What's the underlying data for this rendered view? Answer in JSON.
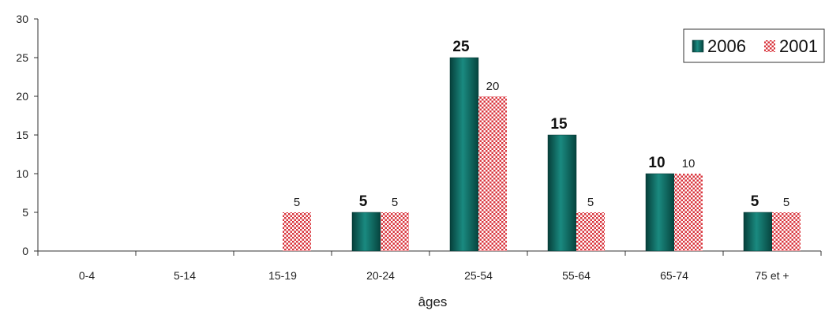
{
  "chart_data": {
    "type": "bar",
    "categories": [
      "0-4",
      "5-14",
      "15-19",
      "20-24",
      "25-54",
      "55-64",
      "65-74",
      "75 et +"
    ],
    "series": [
      {
        "name": "2006",
        "values": [
          0,
          0,
          0,
          5,
          25,
          15,
          10,
          5
        ],
        "color": "#0f6b64"
      },
      {
        "name": "2001",
        "values": [
          0,
          0,
          5,
          5,
          20,
          5,
          10,
          5
        ],
        "color": "#d9363e"
      }
    ],
    "data_labels": [
      [
        null,
        null,
        null,
        "5",
        "25",
        "15",
        "10",
        "5"
      ],
      [
        null,
        null,
        "5",
        "5",
        "20",
        "5",
        "10",
        "5"
      ]
    ],
    "title": "",
    "xlabel": "âges",
    "ylabel": "",
    "ylim": [
      0,
      30
    ],
    "yticks": [
      0,
      5,
      10,
      15,
      20,
      25,
      30
    ],
    "ytick_labels": [
      "0",
      "5",
      "10",
      "15",
      "20",
      "25",
      "30"
    ],
    "grid": false,
    "legend_position": "top-right"
  }
}
